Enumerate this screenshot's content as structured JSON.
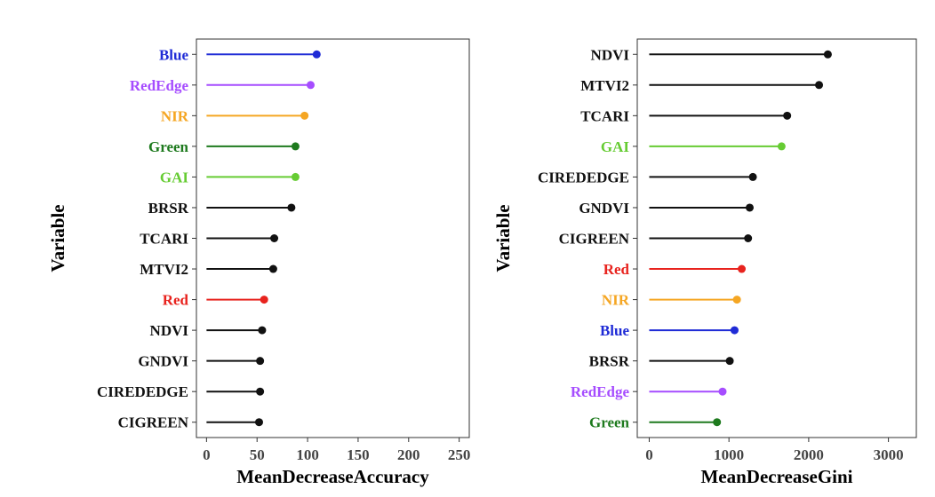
{
  "chart_data": [
    {
      "type": "lollipop",
      "xlabel": "MeanDecreaseAccuracy",
      "ylabel": "Variable",
      "xlim": [
        -10,
        260
      ],
      "xticks": [
        0,
        50,
        100,
        150,
        200,
        250
      ],
      "grid": false,
      "categories": [
        "Blue",
        "RedEdge",
        "NIR",
        "Green",
        "GAI",
        "BRSR",
        "TCARI",
        "MTVI2",
        "Red",
        "NDVI",
        "GNDVI",
        "CIREDEDGE",
        "CIGREEN"
      ],
      "values": [
        109,
        103,
        97,
        88,
        88,
        84,
        67,
        66,
        57,
        55,
        53,
        53,
        52
      ],
      "colors": [
        "#1f2bd6",
        "#a64dff",
        "#f5a623",
        "#1e7a1e",
        "#66cc33",
        "#111111",
        "#111111",
        "#111111",
        "#e8231e",
        "#111111",
        "#111111",
        "#111111",
        "#111111"
      ]
    },
    {
      "type": "lollipop",
      "xlabel": "MeanDecreaseGini",
      "ylabel": "Variable",
      "xlim": [
        -150,
        3350
      ],
      "xticks": [
        0,
        1000,
        2000,
        3000
      ],
      "grid": false,
      "categories": [
        "NDVI",
        "MTVI2",
        "TCARI",
        "GAI",
        "CIREDEDGE",
        "GNDVI",
        "CIGREEN",
        "Red",
        "NIR",
        "Blue",
        "BRSR",
        "RedEdge",
        "Green"
      ],
      "values": [
        2240,
        2130,
        1730,
        1660,
        1300,
        1260,
        1240,
        1160,
        1100,
        1070,
        1010,
        920,
        850
      ],
      "colors": [
        "#111111",
        "#111111",
        "#111111",
        "#66cc33",
        "#111111",
        "#111111",
        "#111111",
        "#e8231e",
        "#f5a623",
        "#1f2bd6",
        "#111111",
        "#a64dff",
        "#1e7a1e"
      ]
    }
  ]
}
